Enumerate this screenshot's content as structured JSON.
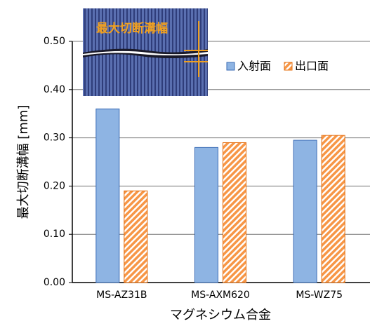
{
  "chart_data": {
    "type": "bar",
    "categories": [
      "MS-AZ31B",
      "MS-AXM620",
      "MS-WZ75"
    ],
    "series": [
      {
        "name": "入射面",
        "color": "#8eb4e3",
        "values": [
          0.36,
          0.28,
          0.295
        ]
      },
      {
        "name": "出口面",
        "color": "#f79646",
        "values": [
          0.19,
          0.29,
          0.305
        ]
      }
    ],
    "ylim": [
      0,
      0.5
    ],
    "yticks": [
      {
        "value": 0,
        "label": "0.00"
      },
      {
        "value": 0.1,
        "label": "0.10"
      },
      {
        "value": 0.2,
        "label": "0.20"
      },
      {
        "value": 0.3,
        "label": "0.30"
      },
      {
        "value": 0.4,
        "label": "0.40"
      },
      {
        "value": 0.5,
        "label": "0.50"
      }
    ],
    "y_label": "最大切断溝幅 [mm]",
    "x_label": "マグネシウム合金",
    "annotation": "最大切断溝幅",
    "grid": true
  }
}
